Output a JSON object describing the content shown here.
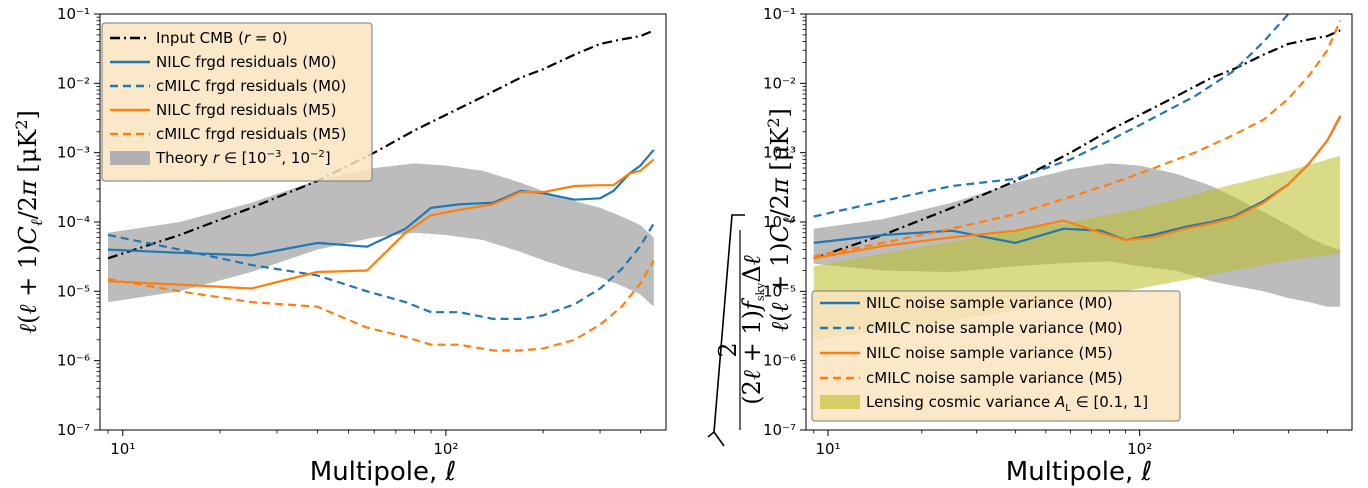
{
  "chart_data": [
    {
      "type": "line",
      "xscale": "log",
      "yscale": "log",
      "xlim": [
        8.5,
        480
      ],
      "ylim": [
        1e-07,
        0.1
      ],
      "xlabel": "Multipole, ℓ",
      "ylabel": "ℓ(ℓ + 1)Cℓ/2π [μK²]",
      "x_tick_labels": [
        "10¹",
        "10²"
      ],
      "y_tick_labels": [
        "10⁻⁷",
        "10⁻⁶",
        "10⁻⁵",
        "10⁻⁴",
        "10⁻³",
        "10⁻²",
        "10⁻¹"
      ],
      "legend": {
        "position": "upper left"
      },
      "bands": [
        {
          "name": "Theory r ∈ [10⁻³, 10⁻²]",
          "color": "#b0b0b0",
          "x": [
            9,
            15,
            25,
            40,
            60,
            80,
            100,
            130,
            170,
            200,
            250,
            300,
            350,
            400,
            440
          ],
          "lower": [
            7e-06,
            1e-05,
            1.9e-05,
            4e-05,
            6e-05,
            7e-05,
            6.5e-05,
            5.5e-05,
            3.7e-05,
            2.8e-05,
            2e-05,
            1.6e-05,
            1.2e-05,
            9e-06,
            6e-06
          ],
          "upper": [
            7e-05,
            0.0001,
            0.00019,
            0.0004,
            0.0006,
            0.0007,
            0.00065,
            0.00055,
            0.00037,
            0.00028,
            0.0002,
            0.00016,
            0.00012,
            9e-05,
            6e-05
          ]
        }
      ],
      "series": [
        {
          "name": "Input CMB (r = 0)",
          "color": "#000000",
          "style": "dashdot",
          "x": [
            9,
            15,
            25,
            40,
            60,
            80,
            100,
            130,
            170,
            200,
            250,
            300,
            350,
            400,
            440
          ],
          "y": [
            3e-05,
            6.5e-05,
            0.00016,
            0.00039,
            0.001,
            0.0021,
            0.0035,
            0.0064,
            0.012,
            0.016,
            0.026,
            0.037,
            0.043,
            0.048,
            0.058
          ]
        },
        {
          "name": "NILC frgd residuals (M0)",
          "color": "#1f77b4",
          "style": "solid",
          "x": [
            9,
            15,
            25,
            40,
            57,
            75,
            90,
            110,
            140,
            170,
            200,
            250,
            300,
            330,
            370,
            400,
            440
          ],
          "y": [
            4e-05,
            3.6e-05,
            3.3e-05,
            5e-05,
            4.4e-05,
            8e-05,
            0.00016,
            0.00018,
            0.00019,
            0.00028,
            0.00026,
            0.00021,
            0.00022,
            0.00028,
            0.0005,
            0.00065,
            0.0011
          ]
        },
        {
          "name": "cMILC frgd residuals (M0)",
          "color": "#1f77b4",
          "style": "dashed",
          "x": [
            9,
            15,
            25,
            40,
            57,
            75,
            90,
            110,
            140,
            170,
            200,
            250,
            300,
            350,
            400,
            440
          ],
          "y": [
            6.5e-05,
            4e-05,
            2.4e-05,
            1.7e-05,
            1e-05,
            7e-06,
            5e-06,
            5e-06,
            4e-06,
            4e-06,
            4.5e-06,
            6.5e-06,
            1.1e-05,
            2.1e-05,
            4.5e-05,
            9.5e-05
          ]
        },
        {
          "name": "NILC frgd residuals (M5)",
          "color": "#ff7f0e",
          "style": "solid",
          "x": [
            9,
            15,
            25,
            40,
            57,
            75,
            90,
            110,
            140,
            170,
            200,
            250,
            300,
            330,
            370,
            400,
            440
          ],
          "y": [
            1.4e-05,
            1.25e-05,
            1.1e-05,
            1.9e-05,
            2e-05,
            7e-05,
            0.000125,
            0.00015,
            0.00018,
            0.00027,
            0.00027,
            0.00033,
            0.00034,
            0.00034,
            0.0005,
            0.00055,
            0.0008
          ]
        },
        {
          "name": "cMILC frgd residuals (M5)",
          "color": "#ff7f0e",
          "style": "dashed",
          "x": [
            9,
            15,
            25,
            40,
            57,
            75,
            90,
            110,
            140,
            170,
            200,
            250,
            300,
            350,
            400,
            440
          ],
          "y": [
            1.5e-05,
            1e-05,
            7e-06,
            6e-06,
            3e-06,
            2.2e-06,
            1.7e-06,
            1.7e-06,
            1.4e-06,
            1.4e-06,
            1.5e-06,
            2e-06,
            3.3e-06,
            6e-06,
            1.3e-05,
            2.8e-05
          ]
        }
      ]
    },
    {
      "type": "line",
      "xscale": "log",
      "yscale": "log",
      "xlim": [
        8.5,
        480
      ],
      "ylim": [
        1e-07,
        0.1
      ],
      "xlabel": "Multipole, ℓ",
      "ylabel": "√(2/((2ℓ+1) f_sky Δℓ)) ℓ(ℓ + 1)Cℓ/2π [μK²]",
      "x_tick_labels": [
        "10¹",
        "10²"
      ],
      "y_tick_labels": [
        "10⁻⁷",
        "10⁻⁶",
        "10⁻⁵",
        "10⁻⁴",
        "10⁻³",
        "10⁻²",
        "10⁻¹"
      ],
      "legend": {
        "position": "lower left"
      },
      "bands": [
        {
          "name": "theory-band",
          "color": "#b0b0b0",
          "x": [
            9,
            15,
            25,
            40,
            60,
            80,
            100,
            130,
            170,
            200,
            250,
            300,
            350,
            400,
            440
          ],
          "lower": [
            2.5e-05,
            2e-05,
            1.9e-05,
            2.3e-05,
            2.6e-05,
            2.7e-05,
            2.3e-05,
            2e-05,
            1.4e-05,
            1.2e-05,
            1e-05,
            8e-06,
            7e-06,
            6e-06,
            6e-06
          ],
          "upper": [
            8e-05,
            0.00011,
            0.00019,
            0.00037,
            0.00058,
            0.0007,
            0.00065,
            0.0005,
            0.00033,
            0.00023,
            0.00014,
            9e-05,
            6e-05,
            4.5e-05,
            4e-05
          ]
        },
        {
          "name": "Lensing cosmic variance A_L ∈ [0.1, 1]",
          "color": "#bcbd22",
          "x": [
            9,
            15,
            25,
            40,
            60,
            100,
            150,
            200,
            300,
            440
          ],
          "lower": [
            2e-06,
            2.7e-06,
            3.8e-06,
            5.3e-06,
            7.3e-06,
            1.1e-05,
            1.55e-05,
            2e-05,
            2.8e-05,
            3.5e-05
          ],
          "upper": [
            2.3e-05,
            3.5e-05,
            5.2e-05,
            7.5e-05,
            0.0001,
            0.000155,
            0.00025,
            0.00035,
            0.00055,
            0.0009
          ]
        }
      ],
      "series": [
        {
          "name": "cmb-curve",
          "color": "#000000",
          "style": "dashdot",
          "x": [
            9,
            15,
            25,
            40,
            60,
            80,
            100,
            130,
            170,
            200,
            250,
            300,
            350,
            400,
            440
          ],
          "y": [
            3e-05,
            6.5e-05,
            0.00016,
            0.00039,
            0.001,
            0.0021,
            0.0035,
            0.0064,
            0.012,
            0.016,
            0.026,
            0.037,
            0.043,
            0.048,
            0.058
          ]
        },
        {
          "name": "NILC noise sample variance (M0)",
          "color": "#1f77b4",
          "style": "solid",
          "x": [
            9,
            15,
            25,
            40,
            57,
            75,
            90,
            110,
            140,
            170,
            200,
            250,
            300,
            350,
            400,
            440
          ],
          "y": [
            5e-05,
            6.5e-05,
            7.5e-05,
            5e-05,
            8e-05,
            7.5e-05,
            5.5e-05,
            6.5e-05,
            8.5e-05,
            0.0001,
            0.00012,
            0.0002,
            0.00035,
            0.0007,
            0.0015,
            0.0033
          ]
        },
        {
          "name": "cMILC noise sample variance (M0)",
          "color": "#1f77b4",
          "style": "dashed",
          "x": [
            9,
            15,
            25,
            40,
            60,
            80,
            100,
            150,
            200,
            250,
            300
          ],
          "y": [
            0.00012,
            0.0002,
            0.00033,
            0.00042,
            0.0008,
            0.0015,
            0.0025,
            0.0065,
            0.015,
            0.04,
            0.1
          ]
        },
        {
          "name": "NILC noise sample variance (M5)",
          "color": "#ff7f0e",
          "style": "solid",
          "x": [
            9,
            15,
            25,
            40,
            57,
            75,
            90,
            110,
            140,
            170,
            200,
            250,
            300,
            350,
            400,
            440
          ],
          "y": [
            3e-05,
            4.5e-05,
            6e-05,
            7.5e-05,
            0.000105,
            7e-05,
            5.5e-05,
            6e-05,
            8e-05,
            9.5e-05,
            0.000115,
            0.00019,
            0.00035,
            0.0007,
            0.0015,
            0.0034
          ]
        },
        {
          "name": "cMILC noise sample variance (M5)",
          "color": "#ff7f0e",
          "style": "dashed",
          "x": [
            9,
            15,
            25,
            40,
            60,
            80,
            100,
            150,
            200,
            250,
            300,
            350,
            400,
            440
          ],
          "y": [
            3.2e-05,
            5e-05,
            8e-05,
            0.00013,
            0.00023,
            0.00035,
            0.0005,
            0.001,
            0.0018,
            0.003,
            0.006,
            0.013,
            0.03,
            0.08
          ]
        }
      ]
    }
  ]
}
